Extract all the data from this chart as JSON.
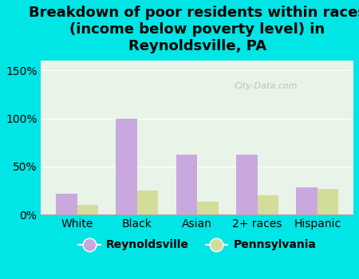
{
  "categories": [
    "White",
    "Black",
    "Asian",
    "2+ races",
    "Hispanic"
  ],
  "reynoldsville": [
    22,
    100,
    62,
    62,
    28
  ],
  "pennsylvania": [
    10,
    25,
    13,
    20,
    27
  ],
  "color_reynoldsville": "#c9a8e0",
  "color_pennsylvania": "#d4dc9a",
  "background_outer": "#00e5e5",
  "background_plot": "#e8f4e8",
  "title": "Breakdown of poor residents within races\n(income below poverty level) in\nReynoldsville, PA",
  "ylabel_ticks": [
    "0%",
    "50%",
    "100%",
    "150%"
  ],
  "ytick_vals": [
    0,
    50,
    100,
    150
  ],
  "ylim": [
    0,
    160
  ],
  "watermark": "City-Data.com",
  "legend_reynoldsville": "Reynoldsville",
  "legend_pennsylvania": "Pennsylvania",
  "title_fontsize": 13,
  "tick_fontsize": 10,
  "legend_fontsize": 10
}
